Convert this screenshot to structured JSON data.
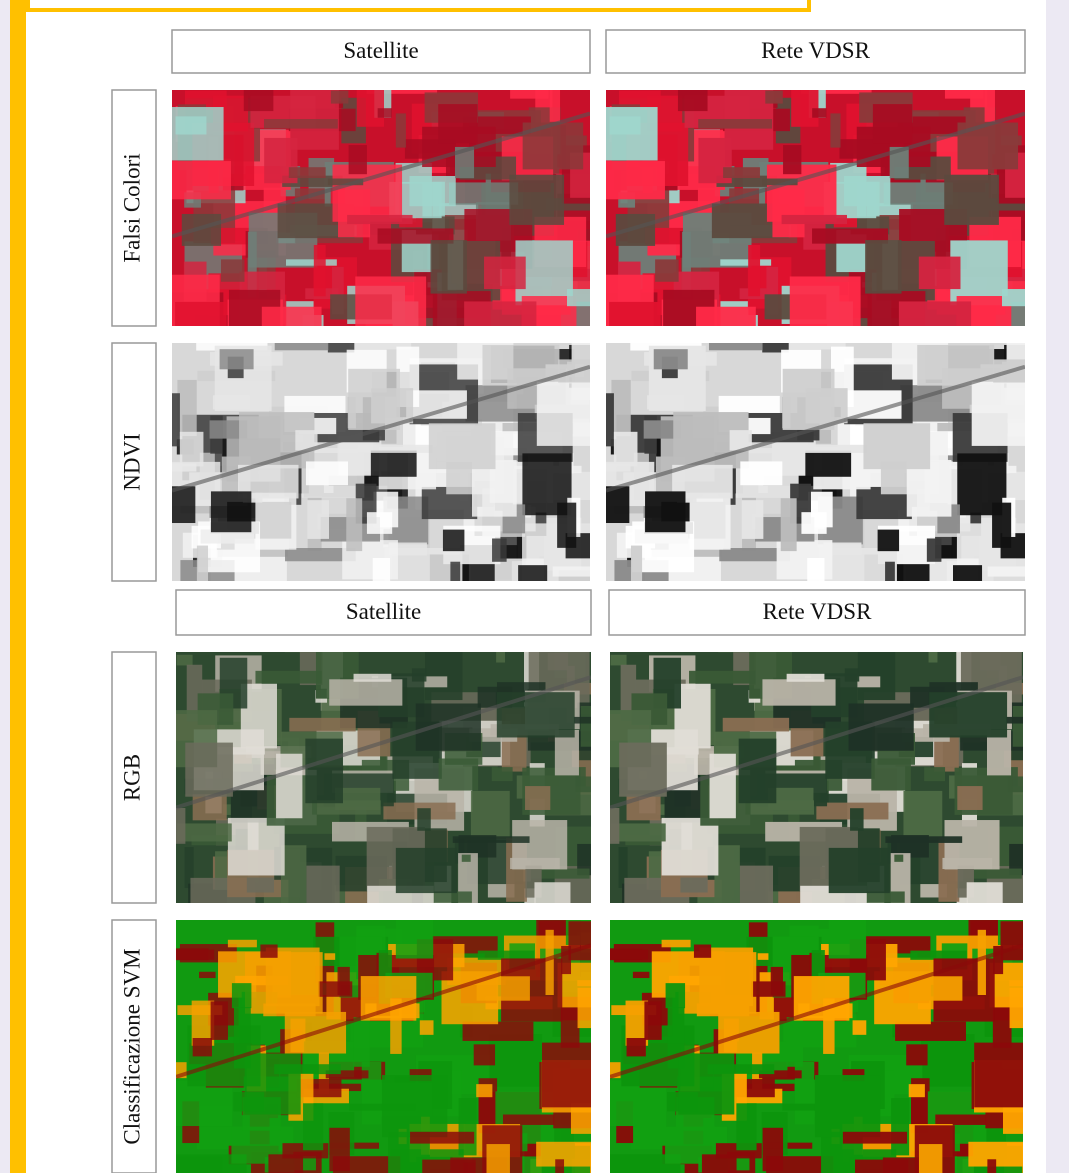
{
  "column_headers": [
    [
      "Satellite",
      "Rete VDSR"
    ],
    [
      "Satellite",
      "Rete VDSR"
    ]
  ],
  "row_labels": [
    "Falsi Colori",
    "NDVI",
    "RGB",
    "Classificazione SVM"
  ]
}
